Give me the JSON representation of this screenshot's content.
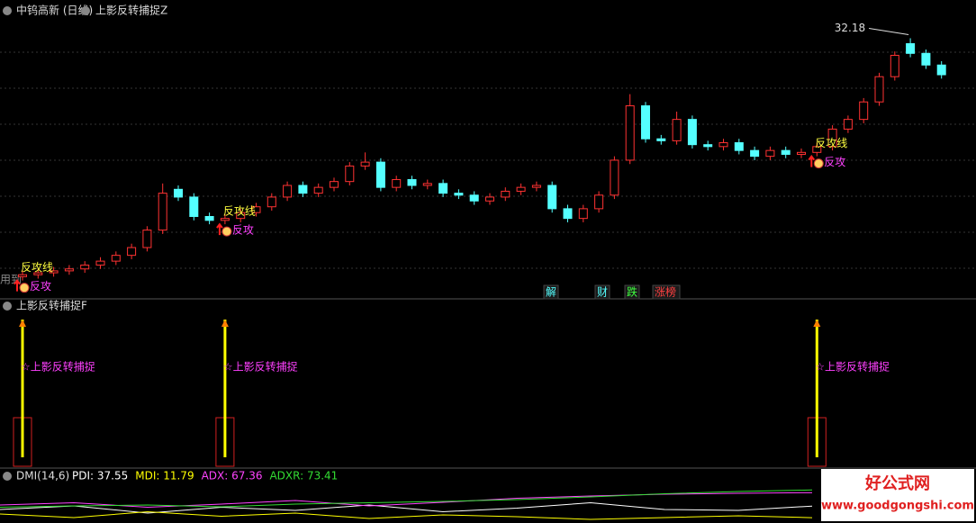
{
  "header": {
    "stock": "中钨高新 (日线)",
    "indicator": "上影反转捕捉Z"
  },
  "main": {
    "type": "candlestick",
    "open": [
      19.9,
      20.0,
      20.1,
      20.2,
      20.3,
      20.5,
      20.7,
      21.0,
      21.4,
      22.3,
      24.4,
      24.0,
      23.0,
      22.8,
      22.9,
      23.2,
      23.5,
      24.0,
      24.6,
      24.2,
      24.5,
      24.8,
      25.6,
      25.8,
      24.5,
      24.9,
      24.6,
      24.7,
      24.2,
      24.1,
      23.8,
      24.0,
      24.3,
      24.5,
      24.6,
      23.4,
      22.9,
      23.4,
      24.1,
      25.9,
      28.7,
      27.0,
      26.9,
      28.0,
      26.7,
      26.6,
      26.8,
      26.4,
      26.1,
      26.4,
      26.2,
      26.3,
      26.6,
      27.5,
      28.0,
      28.9,
      30.2,
      31.9,
      31.4,
      30.8
    ],
    "high": [
      20.2,
      20.3,
      20.4,
      20.5,
      20.7,
      20.9,
      21.2,
      21.6,
      22.5,
      24.7,
      24.6,
      24.2,
      23.2,
      23.1,
      23.4,
      23.7,
      24.2,
      24.8,
      24.8,
      24.7,
      25.0,
      25.8,
      26.3,
      26.0,
      25.1,
      25.1,
      24.9,
      24.9,
      24.4,
      24.3,
      24.2,
      24.5,
      24.7,
      24.8,
      24.8,
      23.6,
      23.6,
      24.3,
      26.1,
      29.3,
      28.9,
      27.2,
      28.4,
      28.2,
      26.9,
      27.0,
      27.0,
      26.6,
      26.6,
      26.6,
      26.5,
      26.8,
      27.7,
      28.2,
      29.1,
      30.4,
      31.5,
      32.18,
      31.6,
      31.0
    ],
    "low": [
      19.7,
      19.8,
      19.9,
      20.0,
      20.1,
      20.3,
      20.5,
      20.8,
      21.2,
      22.1,
      23.8,
      22.8,
      22.6,
      22.6,
      22.7,
      23.0,
      23.3,
      23.8,
      24.0,
      24.0,
      24.3,
      24.6,
      25.4,
      24.3,
      24.3,
      24.4,
      24.4,
      24.0,
      23.9,
      23.6,
      23.6,
      23.8,
      24.1,
      24.3,
      23.2,
      22.7,
      22.7,
      23.2,
      23.9,
      25.7,
      26.8,
      26.7,
      26.7,
      26.5,
      26.4,
      26.4,
      26.2,
      25.9,
      25.9,
      26.0,
      26.0,
      26.1,
      26.4,
      27.3,
      27.8,
      28.7,
      30.0,
      31.2,
      30.6,
      30.1
    ],
    "close": [
      20.0,
      20.1,
      20.2,
      20.3,
      20.5,
      20.7,
      21.0,
      21.4,
      22.3,
      24.2,
      24.0,
      23.0,
      22.8,
      22.9,
      23.2,
      23.5,
      24.0,
      24.6,
      24.2,
      24.5,
      24.8,
      25.6,
      25.8,
      24.5,
      24.9,
      24.6,
      24.7,
      24.2,
      24.1,
      23.8,
      24.0,
      24.3,
      24.5,
      24.6,
      23.4,
      22.9,
      23.4,
      24.1,
      25.9,
      28.7,
      27.0,
      26.9,
      28.0,
      26.7,
      26.6,
      26.8,
      26.4,
      26.1,
      26.4,
      26.2,
      26.3,
      26.6,
      27.5,
      28.0,
      28.9,
      30.2,
      31.3,
      31.4,
      30.8,
      30.3
    ],
    "ylim": [
      19.5,
      33.5
    ],
    "up_color": "#ff3232",
    "down_color": "#54ffff",
    "signal_line_label": "反攻线",
    "signal_label": "反攻",
    "note": "用到"
  },
  "events": [
    "解",
    "财",
    "跌",
    "涨榜"
  ],
  "indicator_f": {
    "title": "上影反转捕捉F",
    "label": "☆上影反转捕捉",
    "ylim": [
      0,
      1
    ],
    "values": [
      1,
      0,
      0,
      0,
      0,
      0,
      0,
      0,
      0,
      0,
      0,
      0,
      0,
      1,
      0,
      0,
      0,
      0,
      0,
      0,
      0,
      0,
      0,
      0,
      0,
      0,
      0,
      0,
      0,
      0,
      0,
      0,
      0,
      0,
      0,
      0,
      0,
      0,
      0,
      0,
      0,
      0,
      0,
      0,
      0,
      0,
      0,
      0,
      0,
      0,
      0,
      1,
      0,
      0,
      0,
      0,
      0,
      0,
      0,
      0
    ]
  },
  "dmi": {
    "title": "DMI(14,6)",
    "ylim": [
      0,
      100
    ],
    "series": [
      {
        "name": "PDI: 37.55",
        "color": "#ffffff",
        "values": [
          30,
          38,
          22,
          35,
          28,
          40,
          25,
          33,
          45,
          30,
          28,
          37.55
        ]
      },
      {
        "name": "MDI: 11.79",
        "color": "#ffff00",
        "values": [
          20,
          12,
          25,
          15,
          22,
          10,
          18,
          14,
          8,
          12,
          16,
          11.79
        ]
      },
      {
        "name": "ADX: 67.36",
        "color": "#ff44ff",
        "values": [
          40,
          45,
          35,
          42,
          50,
          38,
          46,
          55,
          60,
          64,
          66,
          67.36
        ]
      },
      {
        "name": "ADXR: 73.41",
        "color": "#33dd33",
        "values": [
          35,
          38,
          40,
          36,
          42,
          45,
          48,
          52,
          58,
          65,
          70,
          73.41
        ]
      }
    ]
  },
  "watermark": {
    "title": "好公式网",
    "url": "www.goodgongshi.com"
  }
}
